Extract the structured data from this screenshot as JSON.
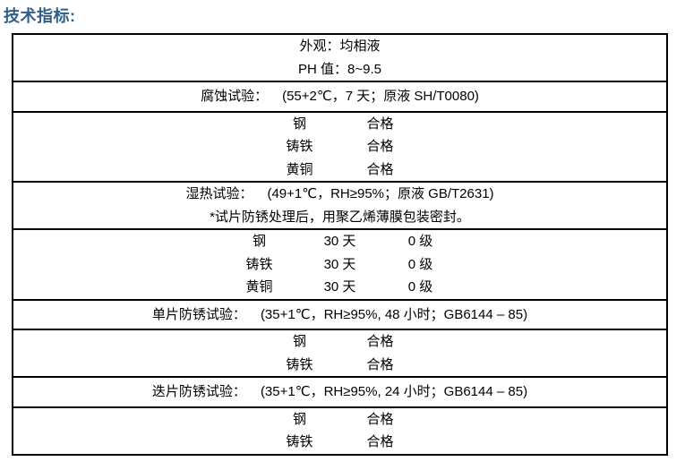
{
  "page": {
    "title": "技术指标:",
    "title_color": "#2E5F8A"
  },
  "table": {
    "border_color": "#000000",
    "rows": [
      {
        "single": false,
        "lines": [
          {
            "kind": "text",
            "text": "外观：均相液"
          },
          {
            "kind": "text",
            "text": "PH 值：8~9.5"
          }
        ]
      },
      {
        "single": true,
        "lines": [
          {
            "kind": "pair",
            "label": "腐蚀试验：",
            "value": "(55+2℃，7 天；原液 SH/T0080)"
          }
        ]
      },
      {
        "single": false,
        "lines": [
          {
            "kind": "cols",
            "cols": [
              "钢",
              "合格"
            ]
          },
          {
            "kind": "cols",
            "cols": [
              "铸铁",
              "合格"
            ]
          },
          {
            "kind": "cols",
            "cols": [
              "黄铜",
              "合格"
            ]
          }
        ]
      },
      {
        "single": false,
        "lines": [
          {
            "kind": "pair",
            "label": "湿热试验：",
            "value": "(49+1℃，RH≥95%；原液 GB/T2631)"
          },
          {
            "kind": "text",
            "text": "*试片防锈处理后，用聚乙烯薄膜包装密封。"
          }
        ]
      },
      {
        "single": false,
        "lines": [
          {
            "kind": "cols",
            "cols": [
              "钢",
              "30 天",
              "0 级"
            ]
          },
          {
            "kind": "cols",
            "cols": [
              "铸铁",
              "30 天",
              "0 级"
            ]
          },
          {
            "kind": "cols",
            "cols": [
              "黄铜",
              "30 天",
              "0 级"
            ]
          }
        ]
      },
      {
        "single": true,
        "lines": [
          {
            "kind": "pair",
            "label": "单片防锈试验：",
            "value": "(35+1℃，RH≥95%, 48 小时；GB6144 – 85)"
          }
        ]
      },
      {
        "single": false,
        "lines": [
          {
            "kind": "cols",
            "cols": [
              "钢",
              "合格"
            ]
          },
          {
            "kind": "cols",
            "cols": [
              "铸铁",
              "合格"
            ]
          }
        ]
      },
      {
        "single": true,
        "lines": [
          {
            "kind": "pair",
            "label": "迭片防锈试验：",
            "value": "(35+1℃，RH≥95%, 24 小时；GB6144 – 85)"
          }
        ]
      },
      {
        "single": false,
        "lines": [
          {
            "kind": "cols",
            "cols": [
              "钢",
              "合格"
            ]
          },
          {
            "kind": "cols",
            "cols": [
              "铸铁",
              "合格"
            ]
          }
        ]
      }
    ]
  }
}
